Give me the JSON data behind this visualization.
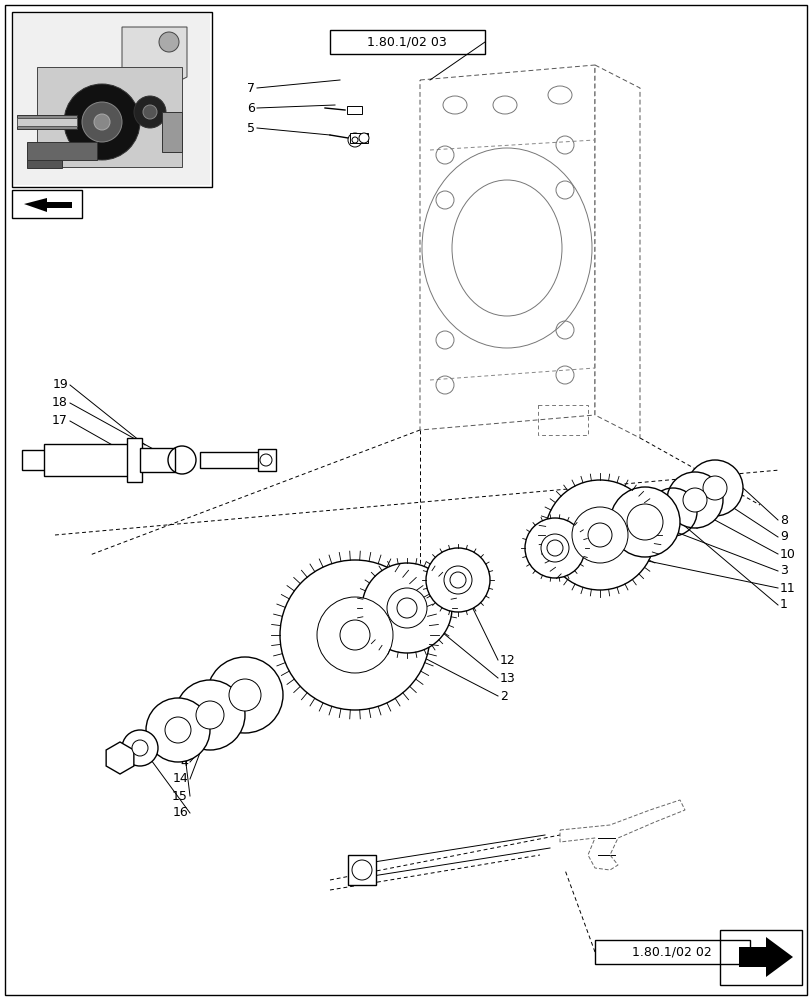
{
  "background_color": "#ffffff",
  "line_color": "#000000",
  "text_color": "#000000",
  "label_ref_top": "1.80.1/02 03",
  "label_ref_bot": "1.80.1/02 02",
  "font_size_labels": 9,
  "font_size_ref": 8
}
